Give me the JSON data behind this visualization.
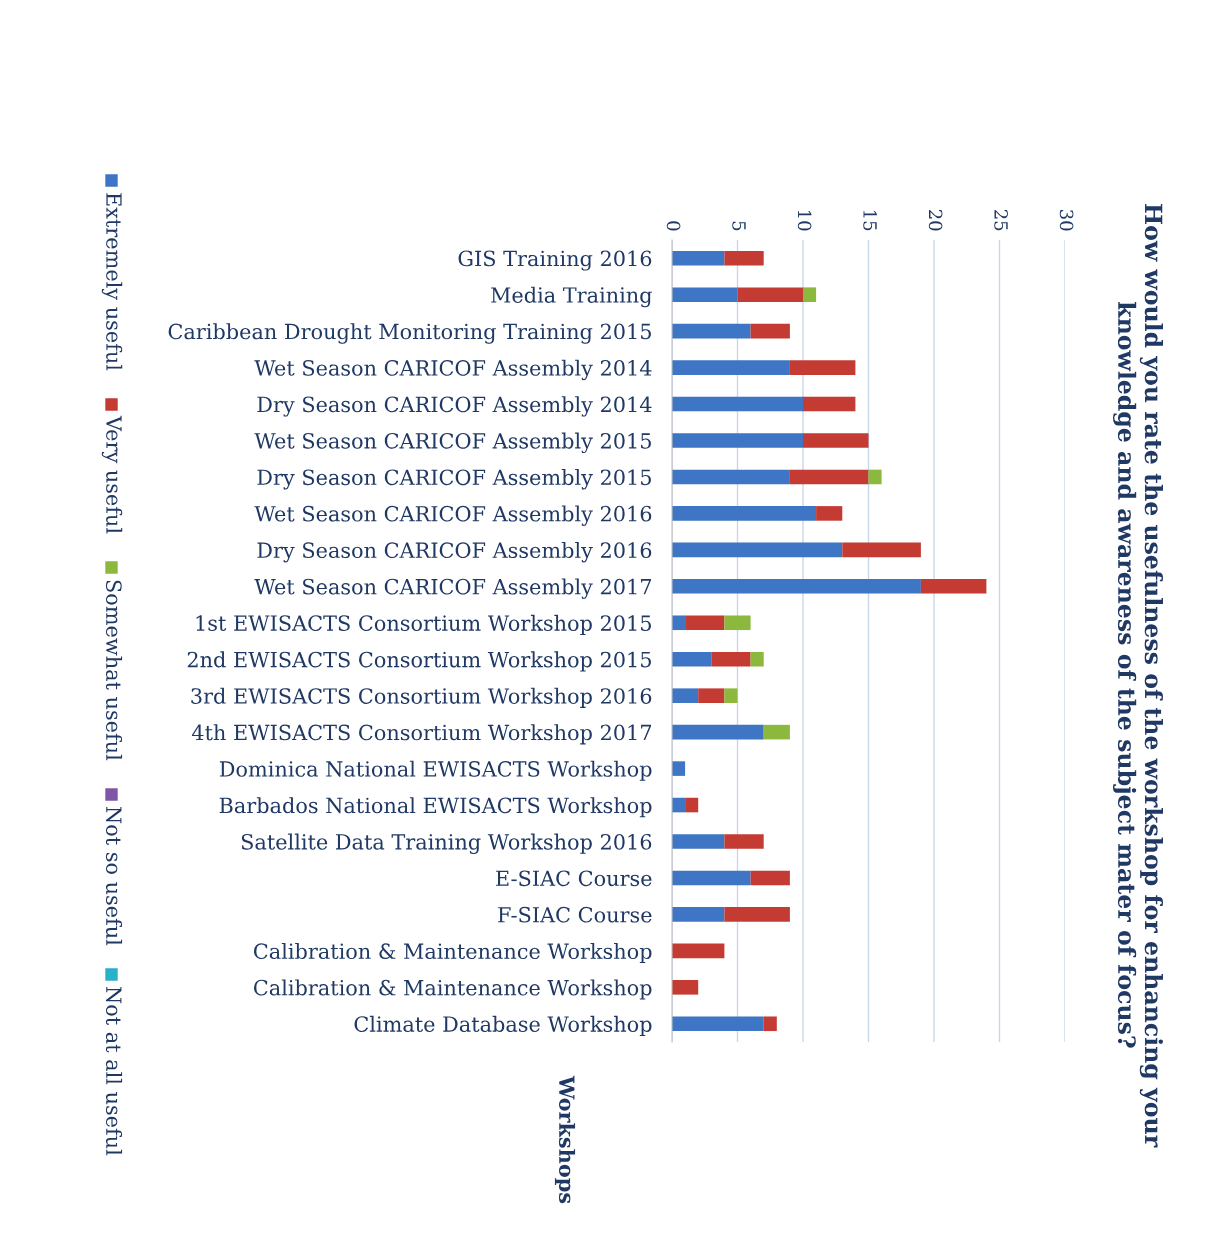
{
  "chart_data": {
    "type": "bar",
    "orientation": "horizontal",
    "stacked": true,
    "title": "How would you rate the usefulness of the workshop for enhancing your\nknowledge and awareness of the subject mater of focus?",
    "ylabel": "Workshops",
    "categories": [
      "GIS Training 2016",
      "Media Training",
      "Caribbean Drought Monitoring Training 2015",
      "Wet Season CARICOF Assembly 2014",
      "Dry Season CARICOF Assembly 2014",
      "Wet Season CARICOF Assembly 2015",
      "Dry Season CARICOF Assembly 2015",
      "Wet Season CARICOF Assembly 2016",
      "Dry Season CARICOF Assembly 2016",
      "Wet Season CARICOF Assembly 2017",
      "1st EWISACTS Consortium Workshop 2015",
      "2nd EWISACTS Consortium Workshop 2015",
      "3rd EWISACTS Consortium Workshop 2016",
      "4th EWISACTS Consortium Workshop 2017",
      "Dominica National EWISACTS Workshop",
      "Barbados National EWISACTS Workshop",
      "Satellite Data Training Workshop 2016",
      "E-SIAC Course",
      "F-SIAC Course",
      "Calibration & Maintenance Workshop",
      "Calibration & Maintenance Workshop",
      "Climate Database Workshop"
    ],
    "series": [
      {
        "name": "Extremely useful",
        "color": "#3e75c4",
        "values": [
          4,
          5,
          6,
          9,
          10,
          10,
          9,
          11,
          13,
          19,
          1,
          3,
          2,
          7,
          1,
          1,
          4,
          6,
          4,
          0,
          0,
          7
        ]
      },
      {
        "name": "Very useful",
        "color": "#c33b33",
        "values": [
          3,
          5,
          3,
          5,
          4,
          5,
          6,
          2,
          6,
          5,
          3,
          3,
          2,
          0,
          0,
          1,
          3,
          3,
          5,
          4,
          2,
          1
        ]
      },
      {
        "name": "Somewhat useful",
        "color": "#8cb83e",
        "values": [
          0,
          1,
          0,
          0,
          0,
          0,
          1,
          0,
          0,
          0,
          2,
          1,
          1,
          2,
          0,
          0,
          0,
          0,
          0,
          0,
          0,
          0
        ]
      },
      {
        "name": "Not so useful",
        "color": "#7e57a8",
        "values": [
          0,
          0,
          0,
          0,
          0,
          0,
          0,
          0,
          0,
          0,
          0,
          0,
          0,
          0,
          0,
          0,
          0,
          0,
          0,
          0,
          0,
          0
        ]
      },
      {
        "name": "Not at all useful",
        "color": "#2ab0c8",
        "values": [
          0,
          0,
          0,
          0,
          0,
          0,
          0,
          0,
          0,
          0,
          0,
          0,
          0,
          0,
          0,
          0,
          0,
          0,
          0,
          0,
          0,
          0
        ]
      }
    ],
    "xlim": [
      0,
      30
    ],
    "xticks": [
      0,
      5,
      10,
      15,
      20,
      25,
      30
    ],
    "grid": "x",
    "legend": "left"
  }
}
